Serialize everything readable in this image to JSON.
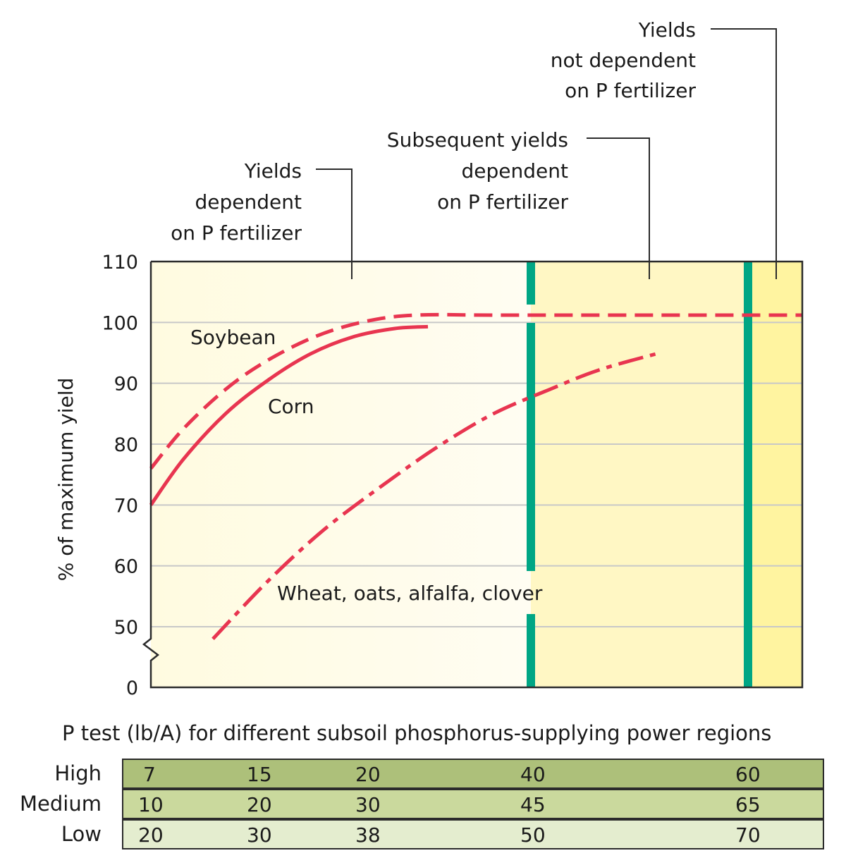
{
  "chart_data": {
    "type": "line",
    "ylabel": "% of maximum yield",
    "xlabel": "",
    "y_ticks": [
      "0",
      "50",
      "60",
      "70",
      "80",
      "90",
      "100",
      "110"
    ],
    "ylim": [
      45,
      110
    ],
    "y_axis_break": true,
    "grid": "horizontal",
    "x": [
      7,
      10,
      12,
      14,
      16,
      18,
      20,
      22,
      24,
      26,
      28,
      30,
      34,
      38,
      42,
      46,
      50,
      56,
      60
    ],
    "series": [
      {
        "name": "Soybean",
        "style": "dashed",
        "x": [
          7,
          8,
          10,
          12,
          14,
          16,
          18,
          20,
          21,
          24,
          30,
          40,
          50,
          60
        ],
        "values": [
          76,
          80,
          86,
          91,
          94.5,
          97.5,
          99.5,
          100.8,
          101.2,
          101.2,
          101.2,
          101.2,
          101.2,
          101.2
        ]
      },
      {
        "name": "Corn",
        "style": "solid",
        "x": [
          7,
          8,
          10,
          12,
          14,
          16,
          18,
          20,
          21,
          22,
          26
        ],
        "values": [
          70,
          75,
          82,
          87.5,
          92,
          95,
          97,
          98.5,
          99,
          99.3,
          99.3
        ]
      },
      {
        "name": "Wheat, oats, alfalfa, clover",
        "style": "dash-dot",
        "x": [
          13,
          16,
          20,
          24,
          28,
          32,
          36,
          40,
          43,
          46,
          48,
          50
        ],
        "values": [
          48,
          56,
          64,
          71,
          77,
          81.5,
          85.5,
          88.5,
          91,
          93,
          94,
          95
        ]
      }
    ],
    "regions": [
      {
        "label": "Yields\ndependent\non P fertilizer",
        "fill": "#fffce6"
      },
      {
        "label": "Subsequent yields\ndependent\non P fertilizer",
        "fill": "#fff7c4"
      },
      {
        "label": "Yields\nnot dependent\non P fertilizer",
        "fill": "#fff4a0"
      }
    ],
    "colors": {
      "series": "#e83550",
      "boundary": "#00a684",
      "grid": "#c8c8c8",
      "axis": "#2b2b2b"
    }
  },
  "table": {
    "caption": "P test (lb/A) for different subsoil phosphorus-supplying power regions",
    "rows": [
      {
        "label": "High",
        "values": [
          "7",
          "15",
          "20",
          "40",
          "60"
        ],
        "color": "#adc07a"
      },
      {
        "label": "Medium",
        "values": [
          "10",
          "20",
          "30",
          "45",
          "65"
        ],
        "color": "#cad99d"
      },
      {
        "label": "Low",
        "values": [
          "20",
          "30",
          "38",
          "50",
          "70"
        ],
        "color": "#e4edcf"
      }
    ]
  }
}
